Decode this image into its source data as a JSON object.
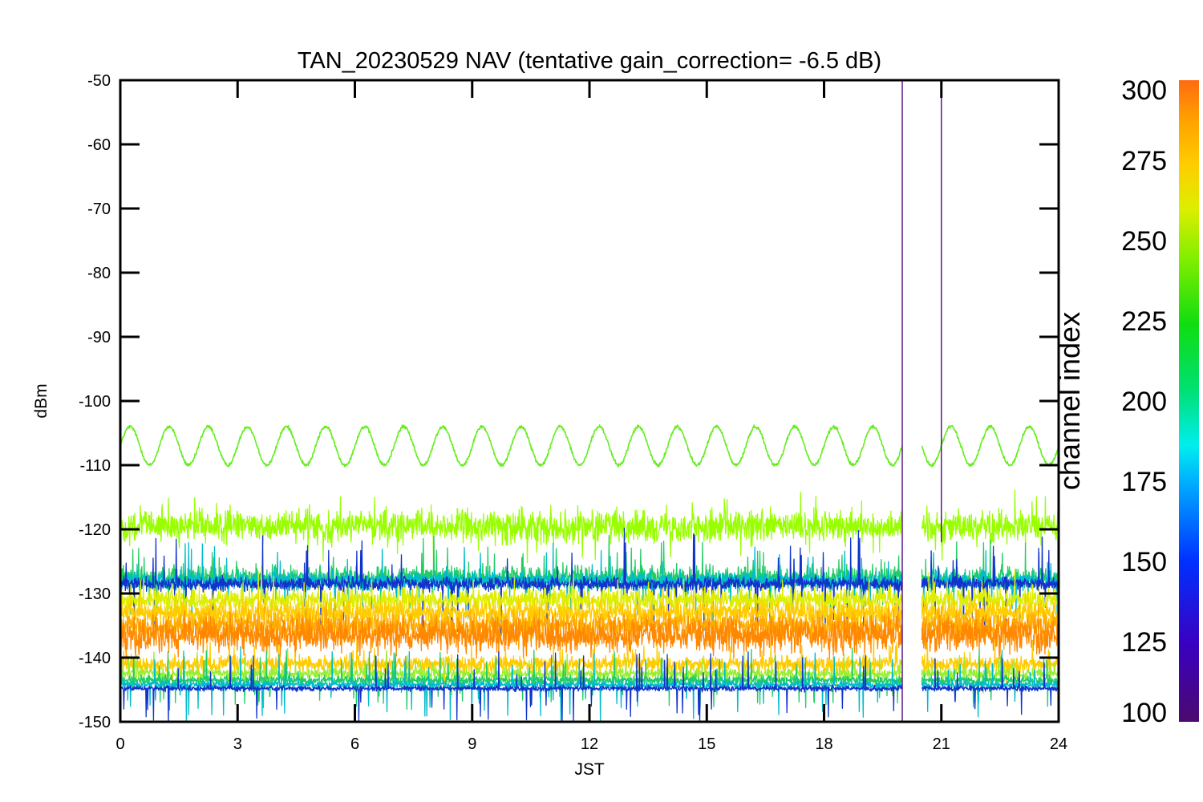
{
  "chart_data": {
    "type": "line",
    "title": "TAN_20230529 NAV (tentative gain_correction= -6.5 dB)",
    "xlabel": "JST",
    "ylabel": "dBm",
    "xlim": [
      0,
      24
    ],
    "ylim": [
      -150,
      -50
    ],
    "xticks": [
      0,
      3,
      6,
      9,
      12,
      15,
      18,
      21,
      24
    ],
    "xtick_labels": [
      "0",
      "3",
      "6",
      "9",
      "12",
      "15",
      "18",
      "21",
      "24"
    ],
    "yticks": [
      -50,
      -60,
      -70,
      -80,
      -90,
      -100,
      -110,
      -120,
      -130,
      -140,
      -150
    ],
    "ytick_labels": [
      "-50",
      "-60",
      "-70",
      "-80",
      "-90",
      "-100",
      "-110",
      "-120",
      "-130",
      "-140",
      "-150"
    ],
    "colorbar": {
      "label": "channel index",
      "range": [
        100,
        300
      ],
      "ticks": [
        300,
        275,
        250,
        225,
        200,
        175,
        150,
        125,
        100
      ],
      "tick_labels": [
        "300",
        "275",
        "250",
        "225",
        "200",
        "175",
        "150",
        "125",
        "100"
      ],
      "colormap": "rainbow"
    },
    "data_gap": {
      "x_start": 20.0,
      "x_end": 20.5
    },
    "spikes": [
      {
        "x": 20.0,
        "y_top": -50,
        "y_bottom": -150,
        "color": "#5a1a8a"
      },
      {
        "x": 21.0,
        "y_top": -52,
        "y_bottom": -122,
        "color": "#5a1a8a"
      }
    ],
    "series": [
      {
        "channel_index": 255,
        "color": "#66ee22",
        "kind": "oscillation",
        "center": -107,
        "amplitude": 3,
        "period_h": 1.0,
        "noise": 0.4
      },
      {
        "channel_index": 262,
        "color": "#99ff00",
        "kind": "noise_band",
        "center": -119.5,
        "halfwidth": 3.5,
        "spike": 2.5
      },
      {
        "channel_index": 230,
        "color": "#22cc66",
        "kind": "noise_band",
        "center": -127.5,
        "halfwidth": 2.5,
        "spike": 3.5
      },
      {
        "channel_index": 185,
        "color": "#00bbcc",
        "kind": "noise_band",
        "center": -128,
        "halfwidth": 2.0,
        "spike": 4
      },
      {
        "channel_index": 140,
        "color": "#1133cc",
        "kind": "noise_band",
        "center": -128.5,
        "halfwidth": 1.5,
        "spike": 5
      },
      {
        "channel_index": 270,
        "color": "#ddee00",
        "kind": "noise_band",
        "center": -131,
        "halfwidth": 2.5,
        "spike": 2
      },
      {
        "channel_index": 280,
        "color": "#ffcc00",
        "kind": "noise_band",
        "center": -133,
        "halfwidth": 2.5,
        "spike": 2
      },
      {
        "channel_index": 290,
        "color": "#ffaa00",
        "kind": "noise_band",
        "center": -135,
        "halfwidth": 3.0,
        "spike": 1.5
      },
      {
        "channel_index": 296,
        "color": "#ff8800",
        "kind": "noise_band",
        "center": -136.5,
        "halfwidth": 4.0,
        "spike": 1
      },
      {
        "channel_index": 280,
        "color": "#ffcc00",
        "kind": "noise_band",
        "center": -141,
        "halfwidth": 1.8,
        "spike": 2
      },
      {
        "channel_index": 250,
        "color": "#99ee33",
        "kind": "noise_band",
        "center": -142.5,
        "halfwidth": 1.2,
        "spike": 2
      },
      {
        "channel_index": 230,
        "color": "#22cc66",
        "kind": "noise_band",
        "center": -143.5,
        "halfwidth": 1.0,
        "spike": 3
      },
      {
        "channel_index": 185,
        "color": "#00bbcc",
        "kind": "noise_band",
        "center": -144.2,
        "halfwidth": 0.8,
        "spike": 3.5
      },
      {
        "channel_index": 140,
        "color": "#1133cc",
        "kind": "noise_band",
        "center": -144.8,
        "halfwidth": 0.6,
        "spike": 3.5
      }
    ]
  }
}
